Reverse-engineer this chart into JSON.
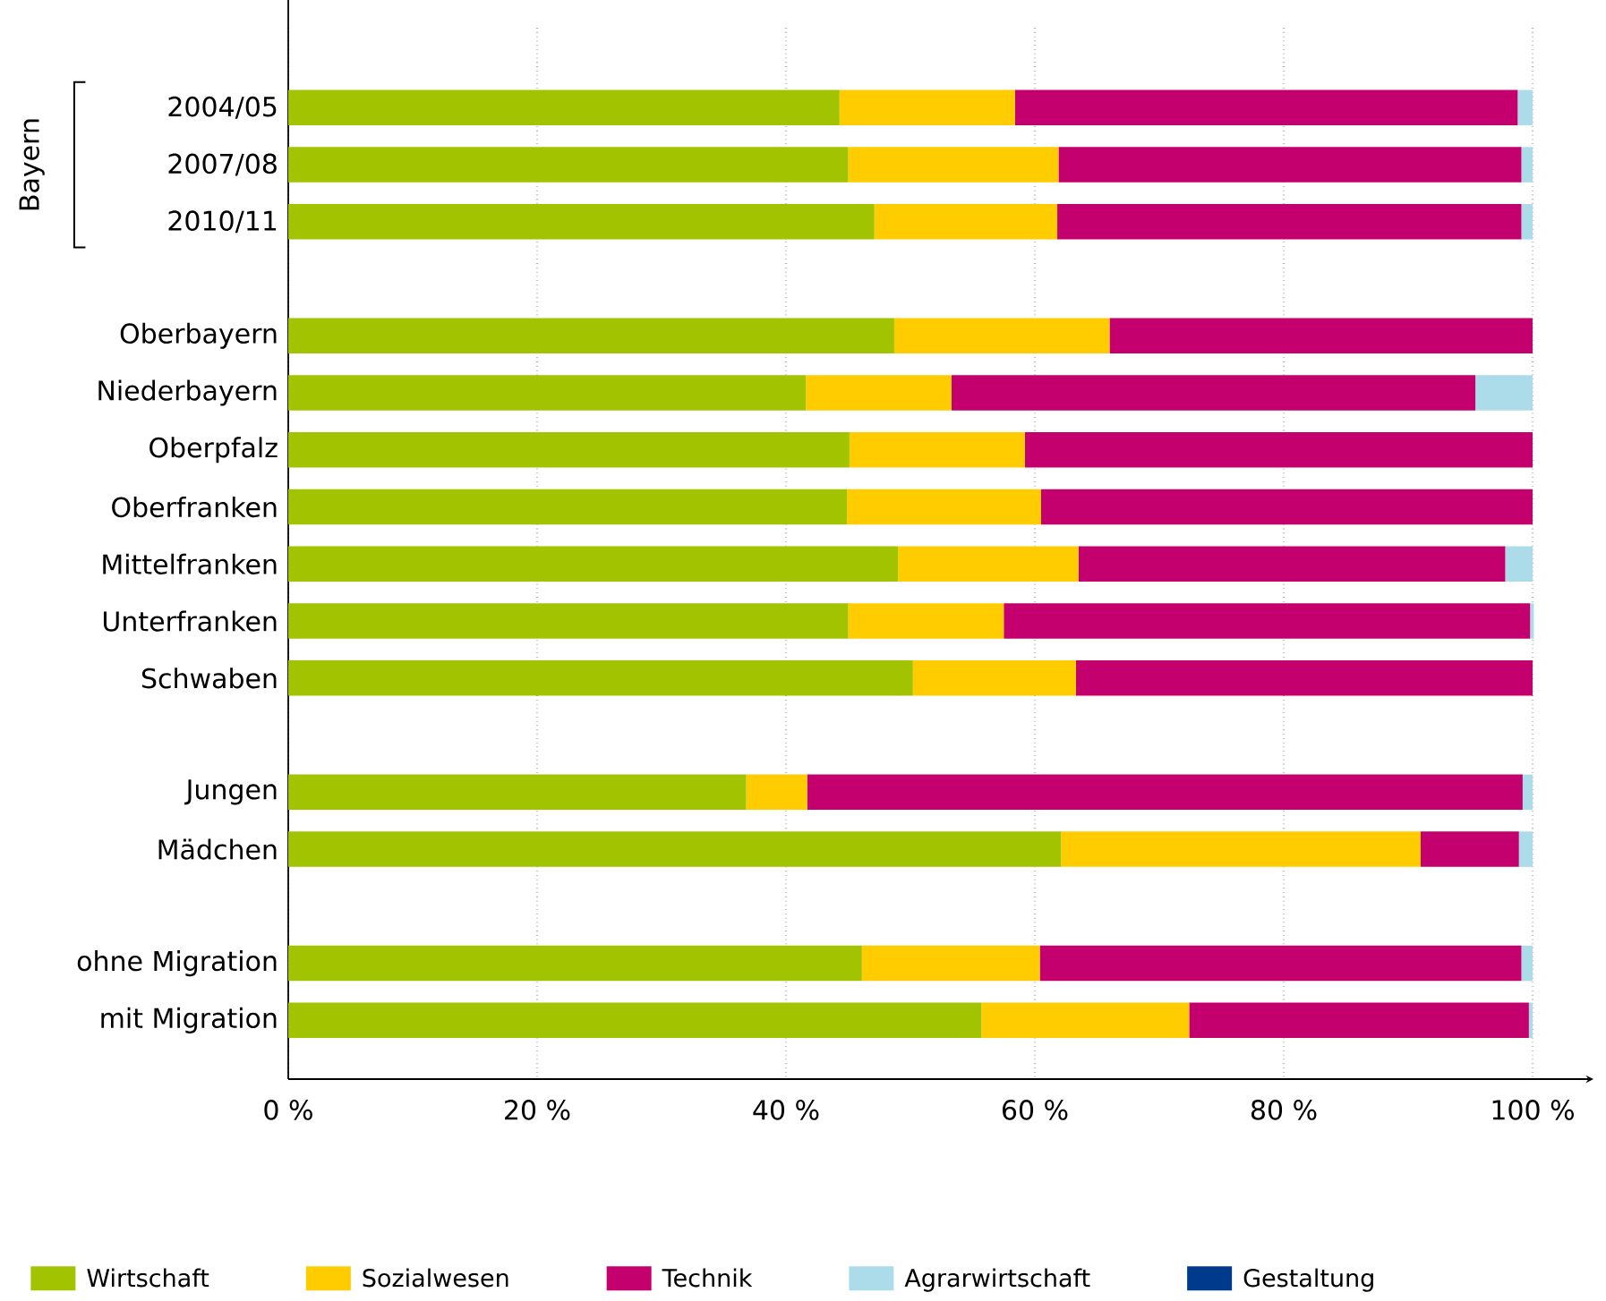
{
  "chart_data": {
    "type": "bar",
    "orientation": "horizontal",
    "stacked": true,
    "categories": [
      "2004/05",
      "2007/08",
      "2010/11",
      null,
      "Oberbayern",
      "Niederbayern",
      "Oberpfalz",
      "Oberfranken",
      "Mittelfranken",
      "Unterfranken",
      "Schwaben",
      null,
      "Jungen",
      "Mädchen",
      null,
      "ohne Migration",
      "mit Migration"
    ],
    "series": [
      {
        "name": "Wirtschaft",
        "color": "#a2c300",
        "values": [
          44.3,
          45.0,
          47.1,
          null,
          48.7,
          41.6,
          45.1,
          44.9,
          49.0,
          45.0,
          50.2,
          null,
          36.8,
          62.1,
          null,
          46.1,
          55.7
        ]
      },
      {
        "name": "Sozialwesen",
        "color": "#ffcc00",
        "values": [
          14.1,
          16.9,
          14.7,
          null,
          17.3,
          11.7,
          14.1,
          15.6,
          14.5,
          12.5,
          13.1,
          null,
          4.9,
          28.9,
          null,
          14.3,
          16.7
        ]
      },
      {
        "name": "Technik",
        "color": "#c4006e",
        "values": [
          40.4,
          37.2,
          37.3,
          null,
          34.0,
          42.1,
          40.8,
          39.5,
          34.3,
          42.3,
          36.7,
          null,
          57.5,
          7.9,
          null,
          38.7,
          27.3
        ]
      },
      {
        "name": "Agrarwirtschaft",
        "color": "#acdcea",
        "values": [
          1.2,
          0.9,
          0.9,
          null,
          0,
          4.6,
          0,
          0,
          2.2,
          0.3,
          0,
          null,
          0.8,
          1.1,
          null,
          0.9,
          0.3
        ]
      },
      {
        "name": "Gestaltung",
        "color": "#003a8c",
        "values": [
          0,
          0,
          0,
          null,
          0,
          0,
          0,
          0,
          0,
          0,
          0,
          null,
          0,
          0,
          null,
          0,
          0
        ]
      }
    ],
    "xlim": [
      0,
      100
    ],
    "xticks": [
      {
        "value": 0,
        "label": "0 %"
      },
      {
        "value": 20,
        "label": "20 %"
      },
      {
        "value": 40,
        "label": "40 %"
      },
      {
        "value": 60,
        "label": "60 %"
      },
      {
        "value": 80,
        "label": "80 %"
      },
      {
        "value": 100,
        "label": "100 %"
      }
    ],
    "grid": "x",
    "legend": "bottom",
    "annotations": [
      "Bayern"
    ]
  }
}
